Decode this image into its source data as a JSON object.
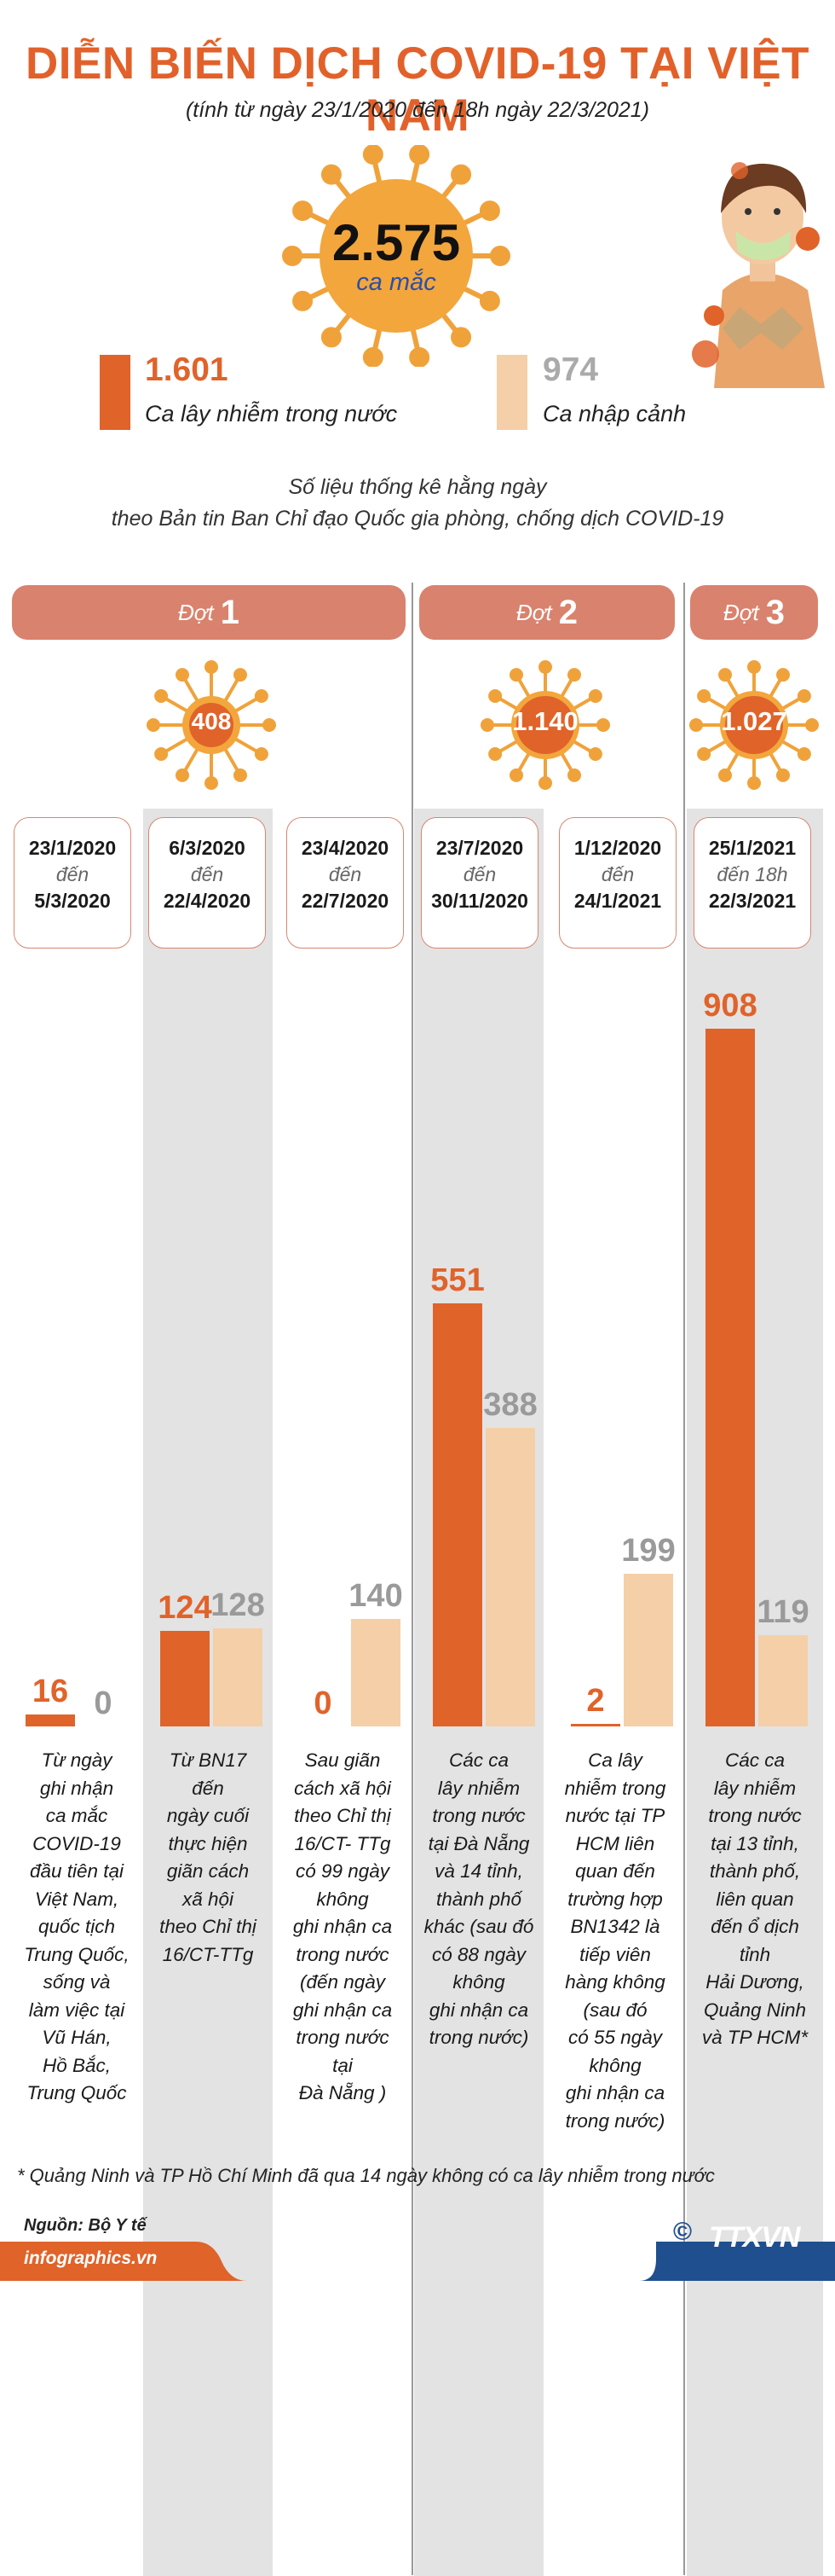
{
  "header": {
    "title": "DIỄN BIẾN DỊCH COVID-19 TẠI VIỆT NAM",
    "subtitle": "(tính từ ngày 23/1/2020 đến 18h ngày 22/3/2021)"
  },
  "total": {
    "value": "2.575",
    "unit": "ca mắc"
  },
  "legend": [
    {
      "value": "1.601",
      "label": "Ca lây nhiễm trong nước",
      "color": "#e0632a"
    },
    {
      "value": "974",
      "label": "Ca nhập cảnh",
      "color": "#f5cfa8"
    }
  ],
  "source_note": [
    "Số liệu thống kê hằng ngày",
    "theo Bản tin Ban Chỉ đạo Quốc gia phòng, chống dịch COVID-19"
  ],
  "phases": [
    {
      "word": "Đợt",
      "number": "1",
      "total": "408"
    },
    {
      "word": "Đợt",
      "number": "2",
      "total": "1.140"
    },
    {
      "word": "Đợt",
      "number": "3",
      "total": "1.027"
    }
  ],
  "periods": [
    {
      "from": "23/1/2020",
      "mid": "đến",
      "to": "5/3/2020"
    },
    {
      "from": "6/3/2020",
      "mid": "đến",
      "to": "22/4/2020"
    },
    {
      "from": "23/4/2020",
      "mid": "đến",
      "to": "22/7/2020"
    },
    {
      "from": "23/7/2020",
      "mid": "đến",
      "to": "30/11/2020"
    },
    {
      "from": "1/12/2020",
      "mid": "đến",
      "to": "24/1/2021"
    },
    {
      "from": "25/1/2021",
      "mid": "đến 18h",
      "to": "22/3/2021"
    }
  ],
  "chart_data": {
    "type": "bar",
    "categories": [
      "23/1/2020 - 5/3/2020",
      "6/3/2020 - 22/4/2020",
      "23/4/2020 - 22/7/2020",
      "23/7/2020 - 30/11/2020",
      "1/12/2020 - 24/1/2021",
      "25/1/2021 - 22/3/2021"
    ],
    "series": [
      {
        "name": "Ca lây nhiễm trong nước",
        "values": [
          16,
          124,
          0,
          551,
          2,
          908
        ],
        "labels": [
          "16",
          "124",
          "0",
          "551",
          "2",
          "908"
        ],
        "color": "#e0632a"
      },
      {
        "name": "Ca nhập cảnh",
        "values": [
          0,
          128,
          140,
          388,
          199,
          119
        ],
        "labels": [
          "0",
          "128",
          "140",
          "388",
          "199",
          "119"
        ],
        "color": "#f5cfa8"
      }
    ],
    "ylim": [
      0,
      908
    ]
  },
  "notes": [
    [
      "Từ ngày",
      "ghi nhận",
      "ca mắc",
      "COVID-19",
      "đầu tiên tại",
      "Việt Nam,",
      "quốc tịch",
      "Trung Quốc,",
      "sống và",
      "làm việc tại",
      "Vũ Hán,",
      "Hồ Bắc,",
      "Trung Quốc"
    ],
    [
      "Từ BN17",
      "đến",
      "ngày cuối",
      "thực hiện",
      "giãn cách",
      "xã hội",
      "theo Chỉ thị",
      "16/CT-TTg"
    ],
    [
      "Sau giãn",
      "cách xã hội",
      "theo Chỉ thị",
      "16/CT- TTg",
      "có 99 ngày",
      "không",
      "ghi nhận ca",
      "trong nước",
      "(đến ngày",
      "ghi nhận ca",
      "trong nước",
      "tại",
      "Đà Nẵng )"
    ],
    [
      "Các ca",
      "lây nhiễm",
      "trong nước",
      "tại Đà Nẵng",
      "và 14 tỉnh,",
      "thành phố",
      "khác (sau đó",
      "có  88 ngày",
      "không",
      "ghi nhận ca",
      "trong nước)"
    ],
    [
      "Ca lây",
      "nhiễm trong",
      "nước tại TP",
      "HCM liên",
      "quan đến",
      "trường hợp",
      "BN1342 là",
      "tiếp viên",
      "hàng không",
      "(sau đó",
      "có  55 ngày",
      "không",
      "ghi nhận ca",
      "trong nước)"
    ],
    [
      "Các ca",
      "lây nhiễm",
      "trong nước",
      "tại 13 tỉnh,",
      "thành phố,",
      "liên quan",
      "đến ổ dịch",
      "tỉnh",
      "Hải Dương,",
      "Quảng Ninh",
      "và TP HCM*"
    ]
  ],
  "footer": {
    "footnote": "* Quảng Ninh và TP Hồ Chí Minh đã qua 14 ngày không có ca lây nhiễm trong nước",
    "source": "Nguồn: Bộ Y tế",
    "site": "infographics.vn",
    "copyright": "©",
    "logo": "TTXVN",
    "brand_color": "#e2612a"
  }
}
